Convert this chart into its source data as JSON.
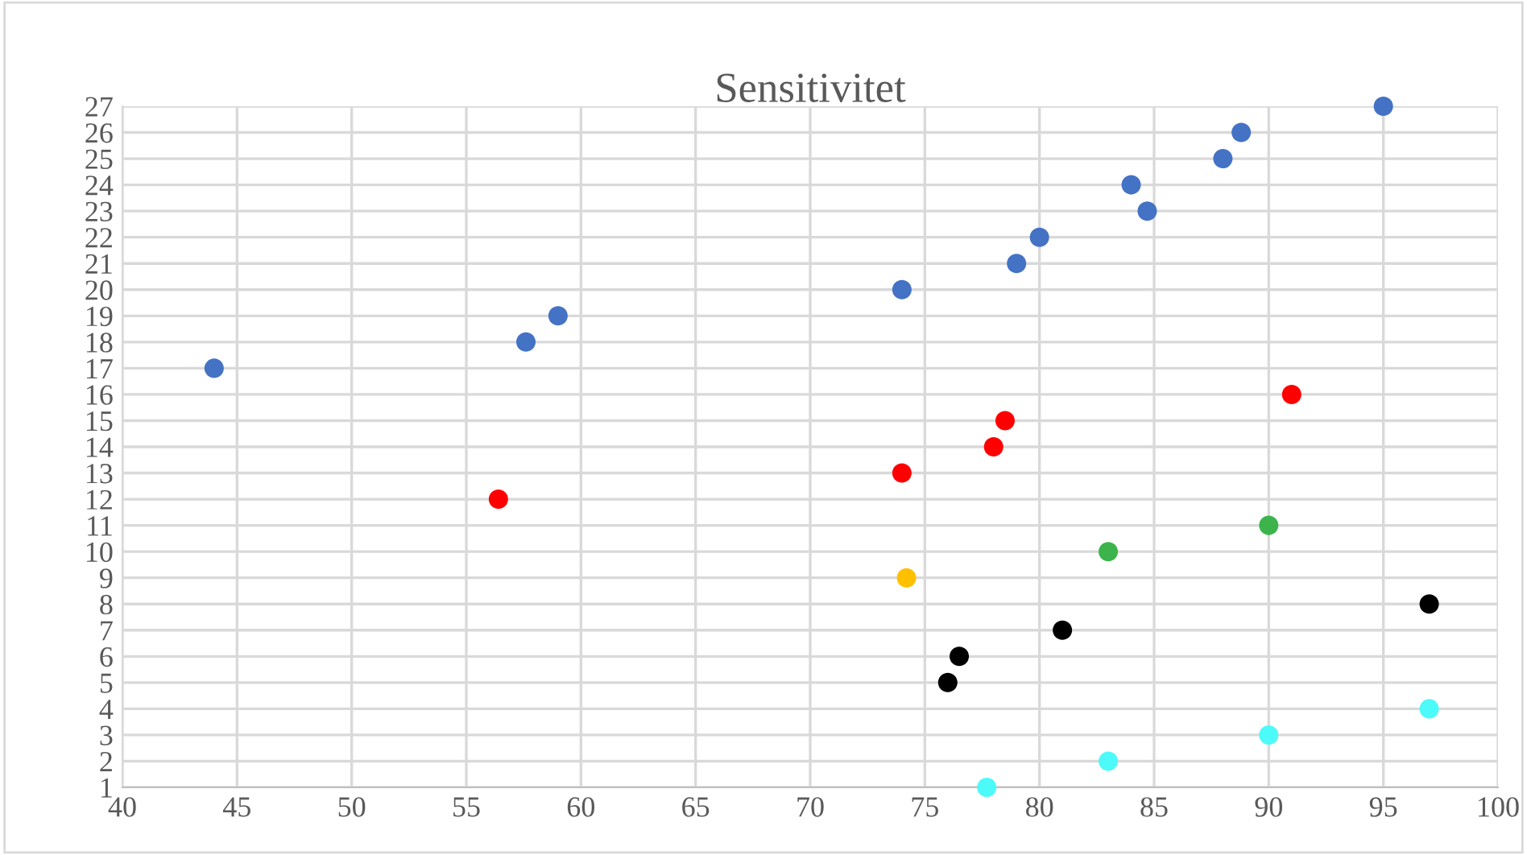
{
  "chart_data": {
    "type": "scatter",
    "title": "Sensitivitet",
    "series": [
      {
        "color": "#4472c4",
        "x": [
          44,
          57.6,
          59,
          74,
          79,
          80,
          84.7,
          84,
          88,
          88.8,
          95
        ],
        "values": [
          17,
          18,
          19,
          20,
          21,
          22,
          23,
          24,
          25,
          26,
          27
        ]
      },
      {
        "color": "#ff0000",
        "x": [
          56.4,
          74,
          78,
          78.5,
          91
        ],
        "values": [
          12,
          13,
          14,
          15,
          16
        ]
      },
      {
        "color": "#3cb44b",
        "x": [
          83,
          90
        ],
        "values": [
          10,
          11
        ]
      },
      {
        "color": "#ffc000",
        "x": [
          74.2
        ],
        "values": [
          9
        ]
      },
      {
        "color": "#000000",
        "x": [
          76,
          76.5,
          81,
          97
        ],
        "values": [
          5,
          6,
          7,
          8
        ]
      },
      {
        "color": "#4dfafa",
        "x": [
          77.7,
          83,
          90,
          97
        ],
        "values": [
          1,
          2,
          3,
          4
        ]
      }
    ],
    "xlim": [
      40,
      100
    ],
    "xticks": [
      40,
      45,
      50,
      55,
      60,
      65,
      70,
      75,
      80,
      85,
      90,
      95,
      100
    ],
    "ylim": [
      1,
      27
    ],
    "yticks": [
      1,
      2,
      3,
      4,
      5,
      6,
      7,
      8,
      9,
      10,
      11,
      12,
      13,
      14,
      15,
      16,
      17,
      18,
      19,
      20,
      21,
      22,
      23,
      24,
      25,
      26,
      27
    ],
    "grid": true,
    "marker": "circle"
  }
}
